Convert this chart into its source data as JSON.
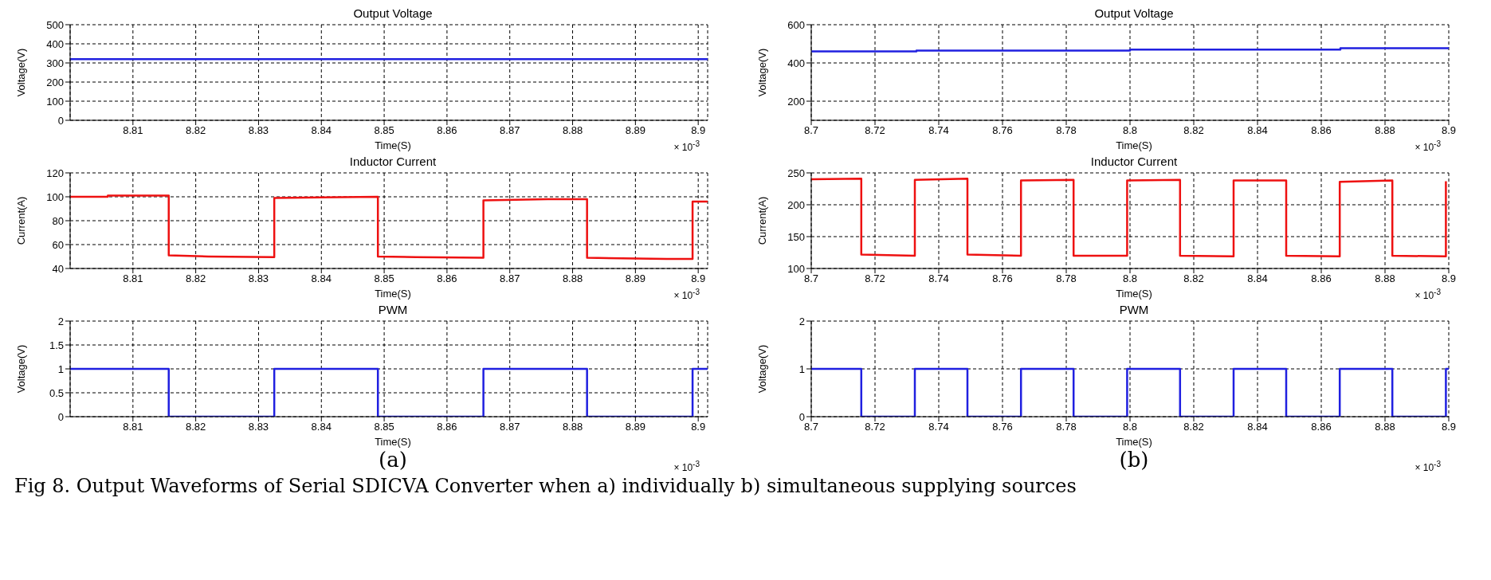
{
  "chart_data": [
    {
      "type": "line",
      "title": "Output Voltage",
      "xlabel": "Time(S)",
      "ylabel": "Voltage(V)",
      "annotations": [
        "× 10$^{-3}$"
      ],
      "x": [
        8.8,
        8.9015
      ],
      "series": [
        {
          "color": "#2020e0",
          "values": [
            320,
            320
          ]
        }
      ],
      "xlim": [
        8.8,
        8.9015
      ],
      "xticks": [
        8.81,
        8.82,
        8.83,
        8.84,
        8.85,
        8.86,
        8.87,
        8.88,
        8.89,
        8.9
      ],
      "ylim": [
        0,
        500
      ],
      "yticks": [
        0,
        100,
        200,
        300,
        400,
        500
      ],
      "grid": true
    },
    {
      "type": "line",
      "title": "Inductor Current",
      "xlabel": "Time(S)",
      "ylabel": "Current(A)",
      "annotations": [
        "× 10$^{-3}$"
      ],
      "x": [
        8.8,
        8.806,
        8.806,
        8.8157,
        8.8157,
        8.822,
        8.8325,
        8.8325,
        8.84,
        8.849,
        8.849,
        8.855,
        8.8658,
        8.8658,
        8.876,
        8.8823,
        8.8823,
        8.895,
        8.8991,
        8.8991,
        8.9015
      ],
      "series": [
        {
          "color": "#ee1111",
          "values": [
            100,
            100,
            101,
            101,
            51,
            50,
            49.5,
            99,
            99.5,
            100,
            50,
            49.5,
            49,
            97,
            98,
            98,
            49,
            48,
            48,
            96,
            96
          ]
        }
      ],
      "xlim": [
        8.8,
        8.9015
      ],
      "xticks": [
        8.81,
        8.82,
        8.83,
        8.84,
        8.85,
        8.86,
        8.87,
        8.88,
        8.89,
        8.9
      ],
      "ylim": [
        40,
        120
      ],
      "yticks": [
        40,
        60,
        80,
        100,
        120
      ],
      "grid": true
    },
    {
      "type": "line",
      "title": "PWM",
      "xlabel": "Time(S)",
      "ylabel": "Voltage(V)",
      "annotations": [
        "× 10$^{-3}$",
        "(a)",
        "Fig 8. Output Waveforms of Serial SDICVA Converter when a) individually b) simultaneous supplying sources"
      ],
      "x": [
        8.8,
        8.8157,
        8.8157,
        8.8325,
        8.8325,
        8.849,
        8.849,
        8.8658,
        8.8658,
        8.8823,
        8.8823,
        8.8991,
        8.8991,
        8.9015
      ],
      "series": [
        {
          "color": "#2020e0",
          "values": [
            1,
            1,
            0,
            0,
            1,
            1,
            0,
            0,
            1,
            1,
            0,
            0,
            1,
            1
          ]
        }
      ],
      "xlim": [
        8.8,
        8.9015
      ],
      "xticks": [
        8.81,
        8.82,
        8.83,
        8.84,
        8.85,
        8.86,
        8.87,
        8.88,
        8.89,
        8.9
      ],
      "ylim": [
        0,
        2
      ],
      "yticks": [
        0,
        0.5,
        1,
        1.5,
        2
      ],
      "grid": true
    },
    {
      "type": "line",
      "title": "Output Voltage",
      "xlabel": "Time(S)",
      "ylabel": "Voltage(V)",
      "annotations": [
        "× 10$^{-3}$"
      ],
      "x": [
        8.7,
        8.733,
        8.733,
        8.8,
        8.8,
        8.866,
        8.866,
        8.9
      ],
      "series": [
        {
          "color": "#2020e0",
          "values": [
            460,
            460,
            465,
            465,
            470,
            470,
            477,
            477
          ]
        }
      ],
      "xlim": [
        8.7,
        8.9
      ],
      "xticks": [
        8.7,
        8.72,
        8.74,
        8.76,
        8.78,
        8.8,
        8.82,
        8.84,
        8.86,
        8.88,
        8.9
      ],
      "ylim": [
        100,
        600
      ],
      "yticks": [
        200,
        400,
        600
      ],
      "grid": true
    },
    {
      "type": "line",
      "title": "Inductor Current",
      "xlabel": "Time(S)",
      "ylabel": "Current(A)",
      "annotations": [
        "× 10$^{-3}$"
      ],
      "x": [
        8.7,
        8.7157,
        8.7157,
        8.7325,
        8.7325,
        8.749,
        8.749,
        8.7658,
        8.7658,
        8.7823,
        8.7823,
        8.7991,
        8.7991,
        8.8157,
        8.8157,
        8.8325,
        8.8325,
        8.849,
        8.849,
        8.8658,
        8.8658,
        8.8823,
        8.8823,
        8.8991,
        8.8991
      ],
      "series": [
        {
          "color": "#ee1111",
          "values": [
            240,
            241,
            122,
            120,
            239,
            241,
            122,
            120,
            238,
            239,
            120,
            120,
            238,
            239,
            120,
            119,
            238,
            238,
            120,
            119,
            236,
            238,
            120,
            119,
            237
          ]
        }
      ],
      "xlim": [
        8.7,
        8.9
      ],
      "xticks": [
        8.7,
        8.72,
        8.74,
        8.76,
        8.78,
        8.8,
        8.82,
        8.84,
        8.86,
        8.88,
        8.9
      ],
      "ylim": [
        100,
        250
      ],
      "yticks": [
        100,
        150,
        200,
        250
      ],
      "grid": true
    },
    {
      "type": "line",
      "title": "PWM",
      "xlabel": "Time(S)",
      "ylabel": "Voltage(V)",
      "annotations": [
        "× 10$^{-3}$",
        "(b)"
      ],
      "x": [
        8.7,
        8.7157,
        8.7157,
        8.7325,
        8.7325,
        8.749,
        8.749,
        8.7658,
        8.7658,
        8.7823,
        8.7823,
        8.7991,
        8.7991,
        8.8157,
        8.8157,
        8.8325,
        8.8325,
        8.849,
        8.849,
        8.8658,
        8.8658,
        8.8823,
        8.8823,
        8.8991,
        8.8991,
        8.9
      ],
      "series": [
        {
          "color": "#2020e0",
          "values": [
            1,
            1,
            0,
            0,
            1,
            1,
            0,
            0,
            1,
            1,
            0,
            0,
            1,
            1,
            0,
            0,
            1,
            1,
            0,
            0,
            1,
            1,
            0,
            0,
            1,
            1
          ]
        }
      ],
      "xlim": [
        8.7,
        8.9
      ],
      "xticks": [
        8.7,
        8.72,
        8.74,
        8.76,
        8.78,
        8.8,
        8.82,
        8.84,
        8.86,
        8.88,
        8.9
      ],
      "ylim": [
        0,
        2
      ],
      "yticks": [
        0,
        1,
        2
      ],
      "grid": true
    }
  ]
}
